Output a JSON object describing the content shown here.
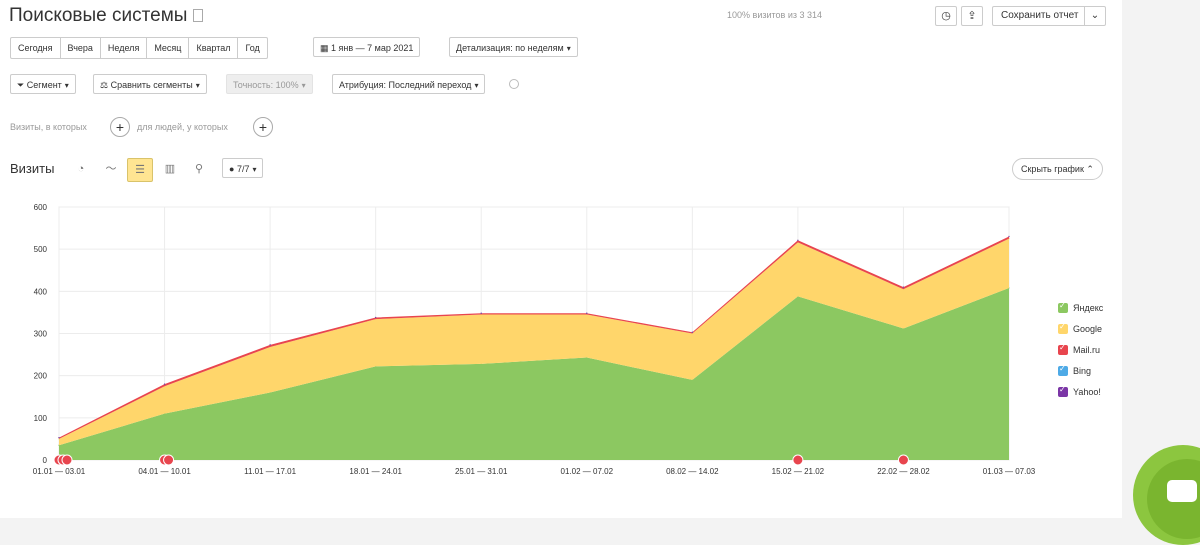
{
  "header": {
    "title": "Поисковые системы",
    "share": "100% визитов из 3 314",
    "save_label": "Сохранить отчет",
    "history_icon": "clock-icon",
    "export_icon": "export-icon"
  },
  "period_tabs": [
    "Сегодня",
    "Вчера",
    "Неделя",
    "Месяц",
    "Квартал",
    "Год"
  ],
  "date_range": "1 янв — 7 мар 2021",
  "detail": "Детализация: по неделям",
  "filters": {
    "segment": "Сегмент",
    "compare": "Сравнить сегменты",
    "accuracy": "Точность: 100%",
    "attribution": "Атрибуция: Последний переход"
  },
  "conditions": {
    "visits_where": "Визиты, в которых",
    "people_where": "для людей, у которых"
  },
  "chart_header": {
    "title": "Визиты",
    "annotations_count": "7/7",
    "hide_label": "Скрыть график"
  },
  "colors": {
    "yandex": "#8cc861",
    "google": "#ffd66b",
    "mailru": "#e8454e",
    "bing": "#4eaae6",
    "yahoo": "#7b36a6"
  },
  "chart_data": {
    "type": "area",
    "stacked": true,
    "title": "",
    "xlabel": "",
    "ylabel": "",
    "ylim": [
      0,
      600
    ],
    "yticks": [
      0,
      100,
      200,
      300,
      400,
      500,
      600
    ],
    "categories": [
      "01.01 — 03.01",
      "04.01 — 10.01",
      "11.01 — 17.01",
      "18.01 — 24.01",
      "25.01 — 31.01",
      "01.02 — 07.02",
      "08.02 — 14.02",
      "15.02 — 21.02",
      "22.02 — 28.02",
      "01.03 — 07.03"
    ],
    "series": [
      {
        "name": "Яндекс",
        "values": [
          35,
          110,
          160,
          222,
          228,
          243,
          190,
          388,
          312,
          408
        ]
      },
      {
        "name": "Google",
        "values": [
          15,
          65,
          108,
          112,
          117,
          102,
          110,
          128,
          93,
          117
        ]
      },
      {
        "name": "Mail.ru",
        "values": [
          3,
          5,
          5,
          4,
          3,
          3,
          3,
          5,
          5,
          5
        ]
      },
      {
        "name": "Bing",
        "values": [
          0,
          0,
          0,
          0,
          0,
          0,
          0,
          0,
          0,
          0
        ]
      },
      {
        "name": "Yahoo!",
        "values": [
          0,
          0,
          0,
          0,
          0,
          0,
          0,
          0,
          0,
          0
        ]
      }
    ],
    "annotation_markers": [
      {
        "category": "01.01 — 03.01",
        "count": 3
      },
      {
        "category": "04.01 — 10.01",
        "count": 2
      },
      {
        "category": "15.02 — 21.02",
        "count": 1
      },
      {
        "category": "22.02 — 28.02",
        "count": 1
      }
    ],
    "grid": true,
    "legend": "right"
  }
}
